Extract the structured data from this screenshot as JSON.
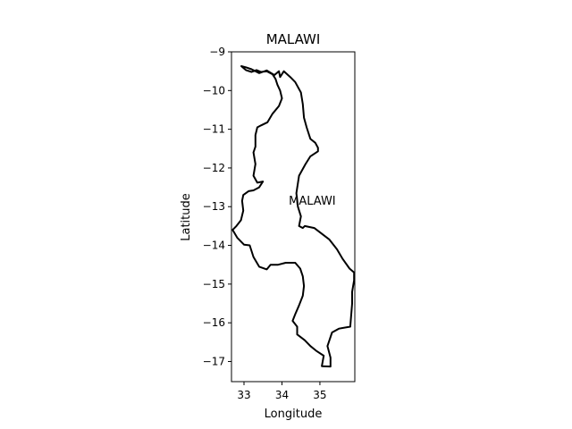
{
  "map": {
    "title": "MALAWI",
    "xlabel": "Longitude",
    "ylabel": "Latitude",
    "xlim": [
      32.67,
      35.92
    ],
    "ylim": [
      -17.52,
      -9.0
    ],
    "xticks": [
      33,
      34,
      35
    ],
    "yticks": [
      -9,
      -10,
      -11,
      -12,
      -13,
      -14,
      -15,
      -16,
      -17
    ],
    "region_label": "MALAWI",
    "region_label_coord": [
      34.8,
      -12.95
    ],
    "outline_color": "#000000",
    "outline": [
      [
        32.93,
        -9.37
      ],
      [
        33.05,
        -9.47
      ],
      [
        33.2,
        -9.52
      ],
      [
        33.33,
        -9.47
      ],
      [
        33.45,
        -9.52
      ],
      [
        33.6,
        -9.5
      ],
      [
        33.75,
        -9.58
      ],
      [
        33.83,
        -9.7
      ],
      [
        33.88,
        -9.85
      ],
      [
        33.95,
        -10.0
      ],
      [
        34.0,
        -10.2
      ],
      [
        33.92,
        -10.4
      ],
      [
        33.75,
        -10.6
      ],
      [
        33.62,
        -10.82
      ],
      [
        33.45,
        -10.9
      ],
      [
        33.35,
        -10.95
      ],
      [
        33.3,
        -11.15
      ],
      [
        33.3,
        -11.45
      ],
      [
        33.25,
        -11.6
      ],
      [
        33.3,
        -11.9
      ],
      [
        33.25,
        -12.2
      ],
      [
        33.35,
        -12.38
      ],
      [
        33.5,
        -12.35
      ],
      [
        33.4,
        -12.5
      ],
      [
        33.25,
        -12.58
      ],
      [
        33.12,
        -12.6
      ],
      [
        32.98,
        -12.7
      ],
      [
        32.95,
        -12.85
      ],
      [
        32.98,
        -13.1
      ],
      [
        32.92,
        -13.35
      ],
      [
        32.8,
        -13.5
      ],
      [
        32.7,
        -13.6
      ],
      [
        32.82,
        -13.8
      ],
      [
        33.0,
        -13.98
      ],
      [
        33.15,
        -14.0
      ],
      [
        33.25,
        -14.3
      ],
      [
        33.4,
        -14.55
      ],
      [
        33.6,
        -14.62
      ],
      [
        33.7,
        -14.5
      ],
      [
        33.9,
        -14.5
      ],
      [
        34.1,
        -14.45
      ],
      [
        34.35,
        -14.45
      ],
      [
        34.48,
        -14.6
      ],
      [
        34.55,
        -14.8
      ],
      [
        34.58,
        -15.05
      ],
      [
        34.55,
        -15.3
      ],
      [
        34.45,
        -15.55
      ],
      [
        34.35,
        -15.78
      ],
      [
        34.28,
        -15.95
      ],
      [
        34.4,
        -16.1
      ],
      [
        34.4,
        -16.3
      ],
      [
        34.6,
        -16.45
      ],
      [
        34.75,
        -16.6
      ],
      [
        34.9,
        -16.72
      ],
      [
        35.1,
        -16.85
      ],
      [
        35.05,
        -17.12
      ],
      [
        35.28,
        -17.13
      ],
      [
        35.28,
        -16.9
      ],
      [
        35.2,
        -16.6
      ],
      [
        35.32,
        -16.25
      ],
      [
        35.5,
        -16.15
      ],
      [
        35.8,
        -16.1
      ],
      [
        35.85,
        -15.5
      ],
      [
        35.85,
        -15.2
      ],
      [
        35.9,
        -14.9
      ],
      [
        35.9,
        -14.7
      ],
      [
        35.78,
        -14.6
      ],
      [
        35.6,
        -14.35
      ],
      [
        35.45,
        -14.1
      ],
      [
        35.25,
        -13.85
      ],
      [
        35.05,
        -13.7
      ],
      [
        34.85,
        -13.55
      ],
      [
        34.6,
        -13.5
      ],
      [
        34.55,
        -13.55
      ],
      [
        34.45,
        -13.5
      ],
      [
        34.5,
        -13.25
      ],
      [
        34.42,
        -13.0
      ],
      [
        34.38,
        -12.65
      ],
      [
        34.45,
        -12.2
      ],
      [
        34.62,
        -11.9
      ],
      [
        34.75,
        -11.7
      ],
      [
        34.95,
        -11.57
      ],
      [
        34.95,
        -11.48
      ],
      [
        34.88,
        -11.35
      ],
      [
        34.75,
        -11.25
      ],
      [
        34.65,
        -10.95
      ],
      [
        34.58,
        -10.7
      ],
      [
        34.55,
        -10.35
      ],
      [
        34.5,
        -10.05
      ],
      [
        34.35,
        -9.78
      ],
      [
        34.22,
        -9.65
      ],
      [
        34.05,
        -9.5
      ],
      [
        33.95,
        -9.65
      ],
      [
        33.92,
        -9.5
      ],
      [
        33.8,
        -9.6
      ],
      [
        33.6,
        -9.48
      ],
      [
        33.4,
        -9.55
      ],
      [
        33.2,
        -9.45
      ],
      [
        33.05,
        -9.4
      ],
      [
        32.93,
        -9.37
      ]
    ]
  }
}
